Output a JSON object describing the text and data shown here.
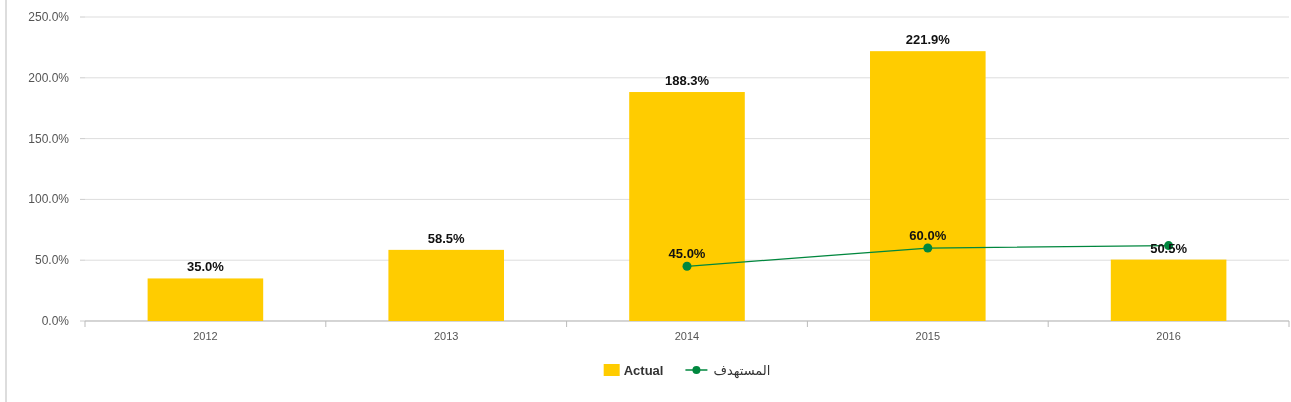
{
  "chart_data": {
    "type": "bar",
    "categories": [
      "2012",
      "2013",
      "2014",
      "2015",
      "2016"
    ],
    "series": [
      {
        "name": "Actual",
        "color": "#ffcc00",
        "values": [
          35.0,
          58.5,
          188.3,
          221.9,
          50.5
        ],
        "value_labels": [
          "35.0%",
          "58.5%",
          "188.3%",
          "221.9%",
          "50.5%"
        ]
      },
      {
        "name": "المستهدف",
        "type": "line",
        "color": "#00873e",
        "marker": "circle",
        "line_style": "solid",
        "values": [
          null,
          null,
          45.0,
          60.0,
          62
        ],
        "value_labels": [
          null,
          null,
          "45.0%",
          "60.0%",
          null
        ]
      }
    ],
    "ylim": [
      0,
      250
    ],
    "yticks": [
      {
        "value": 0,
        "label": "0.0%"
      },
      {
        "value": 50,
        "label": "50.0%"
      },
      {
        "value": 100,
        "label": "100.0%"
      },
      {
        "value": 150,
        "label": "150.0%"
      },
      {
        "value": 200,
        "label": "200.0%"
      },
      {
        "value": 250,
        "label": "250.0%"
      }
    ],
    "grid": "y",
    "legend": "bottom"
  }
}
